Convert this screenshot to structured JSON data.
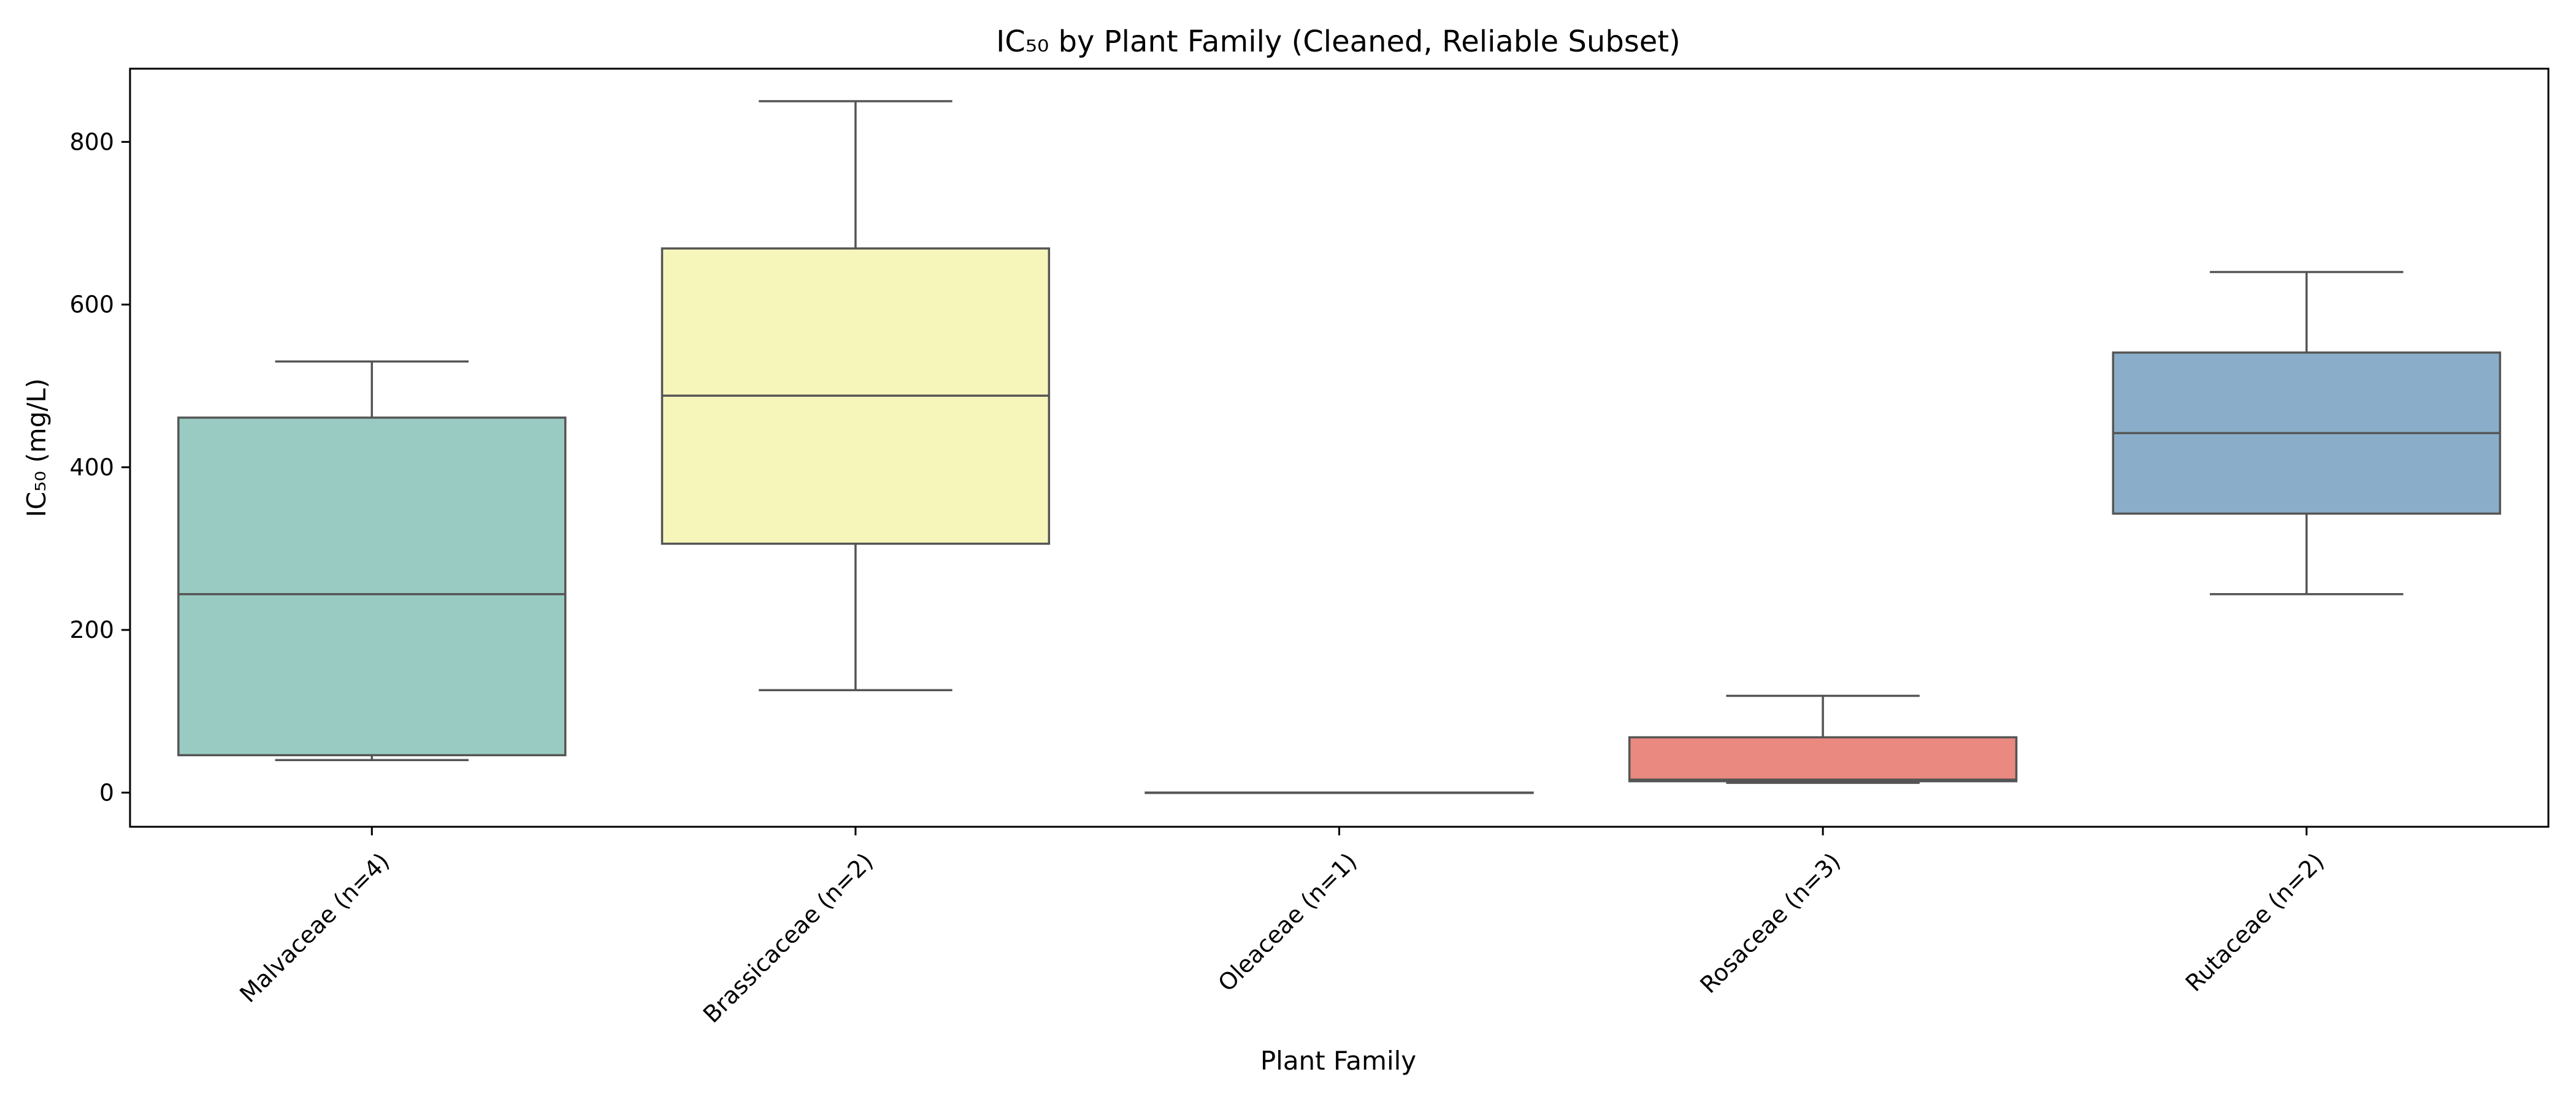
{
  "chart_data": {
    "type": "box",
    "title": "IC₅₀ by Plant Family (Cleaned, Reliable Subset)",
    "xlabel": "Plant Family",
    "ylabel": "IC₅₀ (mg/L)",
    "ylim": [
      -42,
      890
    ],
    "yticks": [
      0,
      200,
      400,
      600,
      800
    ],
    "grid": false,
    "legend": "none",
    "categories": [
      "Malvaceae (n=4)",
      "Brassicaceae (n=2)",
      "Oleaceae (n=1)",
      "Rosaceae (n=3)",
      "Rutaceae (n=2)"
    ],
    "boxes": [
      {
        "category": "Malvaceae (n=4)",
        "whisker_low": 40,
        "q1": 46,
        "median": 244,
        "q3": 461,
        "whisker_high": 530,
        "color": "#99cbc2"
      },
      {
        "category": "Brassicaceae (n=2)",
        "whisker_low": 126,
        "q1": 306,
        "median": 488,
        "q3": 669,
        "whisker_high": 850,
        "color": "#f6f6bb"
      },
      {
        "category": "Oleaceae (n=1)",
        "whisker_low": 0,
        "q1": 0,
        "median": 0,
        "q3": 0,
        "whisker_high": 0,
        "color": "#bdb9d7"
      },
      {
        "category": "Rosaceae (n=3)",
        "whisker_low": 12,
        "q1": 14,
        "median": 16,
        "q3": 68,
        "whisker_high": 119,
        "color": "#e9897f"
      },
      {
        "category": "Rutaceae (n=2)",
        "whisker_low": 244,
        "q1": 343,
        "median": 442,
        "q3": 541,
        "whisker_high": 640,
        "color": "#8aaec9"
      }
    ]
  }
}
